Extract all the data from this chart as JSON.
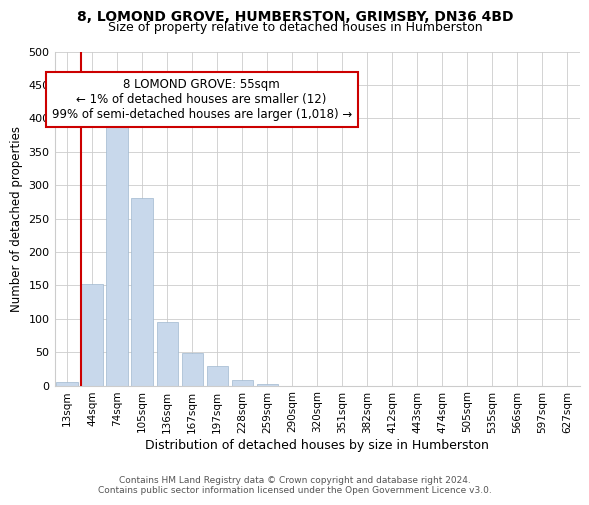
{
  "title": "8, LOMOND GROVE, HUMBERSTON, GRIMSBY, DN36 4BD",
  "subtitle": "Size of property relative to detached houses in Humberston",
  "xlabel": "Distribution of detached houses by size in Humberston",
  "ylabel": "Number of detached properties",
  "bar_labels": [
    "13sqm",
    "44sqm",
    "74sqm",
    "105sqm",
    "136sqm",
    "167sqm",
    "197sqm",
    "228sqm",
    "259sqm",
    "290sqm",
    "320sqm",
    "351sqm",
    "382sqm",
    "412sqm",
    "443sqm",
    "474sqm",
    "505sqm",
    "535sqm",
    "566sqm",
    "597sqm",
    "627sqm"
  ],
  "bar_values": [
    5,
    152,
    420,
    280,
    95,
    48,
    30,
    8,
    2,
    0,
    0,
    0,
    0,
    0,
    0,
    0,
    0,
    0,
    0,
    0,
    0
  ],
  "bar_color": "#c8d8eb",
  "bar_edge_color": "#a0b8d0",
  "vline_color": "#cc0000",
  "vline_x_index": 1,
  "ylim": [
    0,
    500
  ],
  "yticks": [
    0,
    50,
    100,
    150,
    200,
    250,
    300,
    350,
    400,
    450,
    500
  ],
  "annotation_line1": "8 LOMOND GROVE: 55sqm",
  "annotation_line2": "← 1% of detached houses are smaller (12)",
  "annotation_line3": "99% of semi-detached houses are larger (1,018) →",
  "footer_line1": "Contains HM Land Registry data © Crown copyright and database right 2024.",
  "footer_line2": "Contains public sector information licensed under the Open Government Licence v3.0.",
  "background_color": "#ffffff",
  "grid_color": "#cccccc",
  "title_fontsize": 10,
  "subtitle_fontsize": 9,
  "ylabel_fontsize": 8.5,
  "xlabel_fontsize": 9,
  "tick_fontsize": 7.5,
  "footer_fontsize": 6.5
}
